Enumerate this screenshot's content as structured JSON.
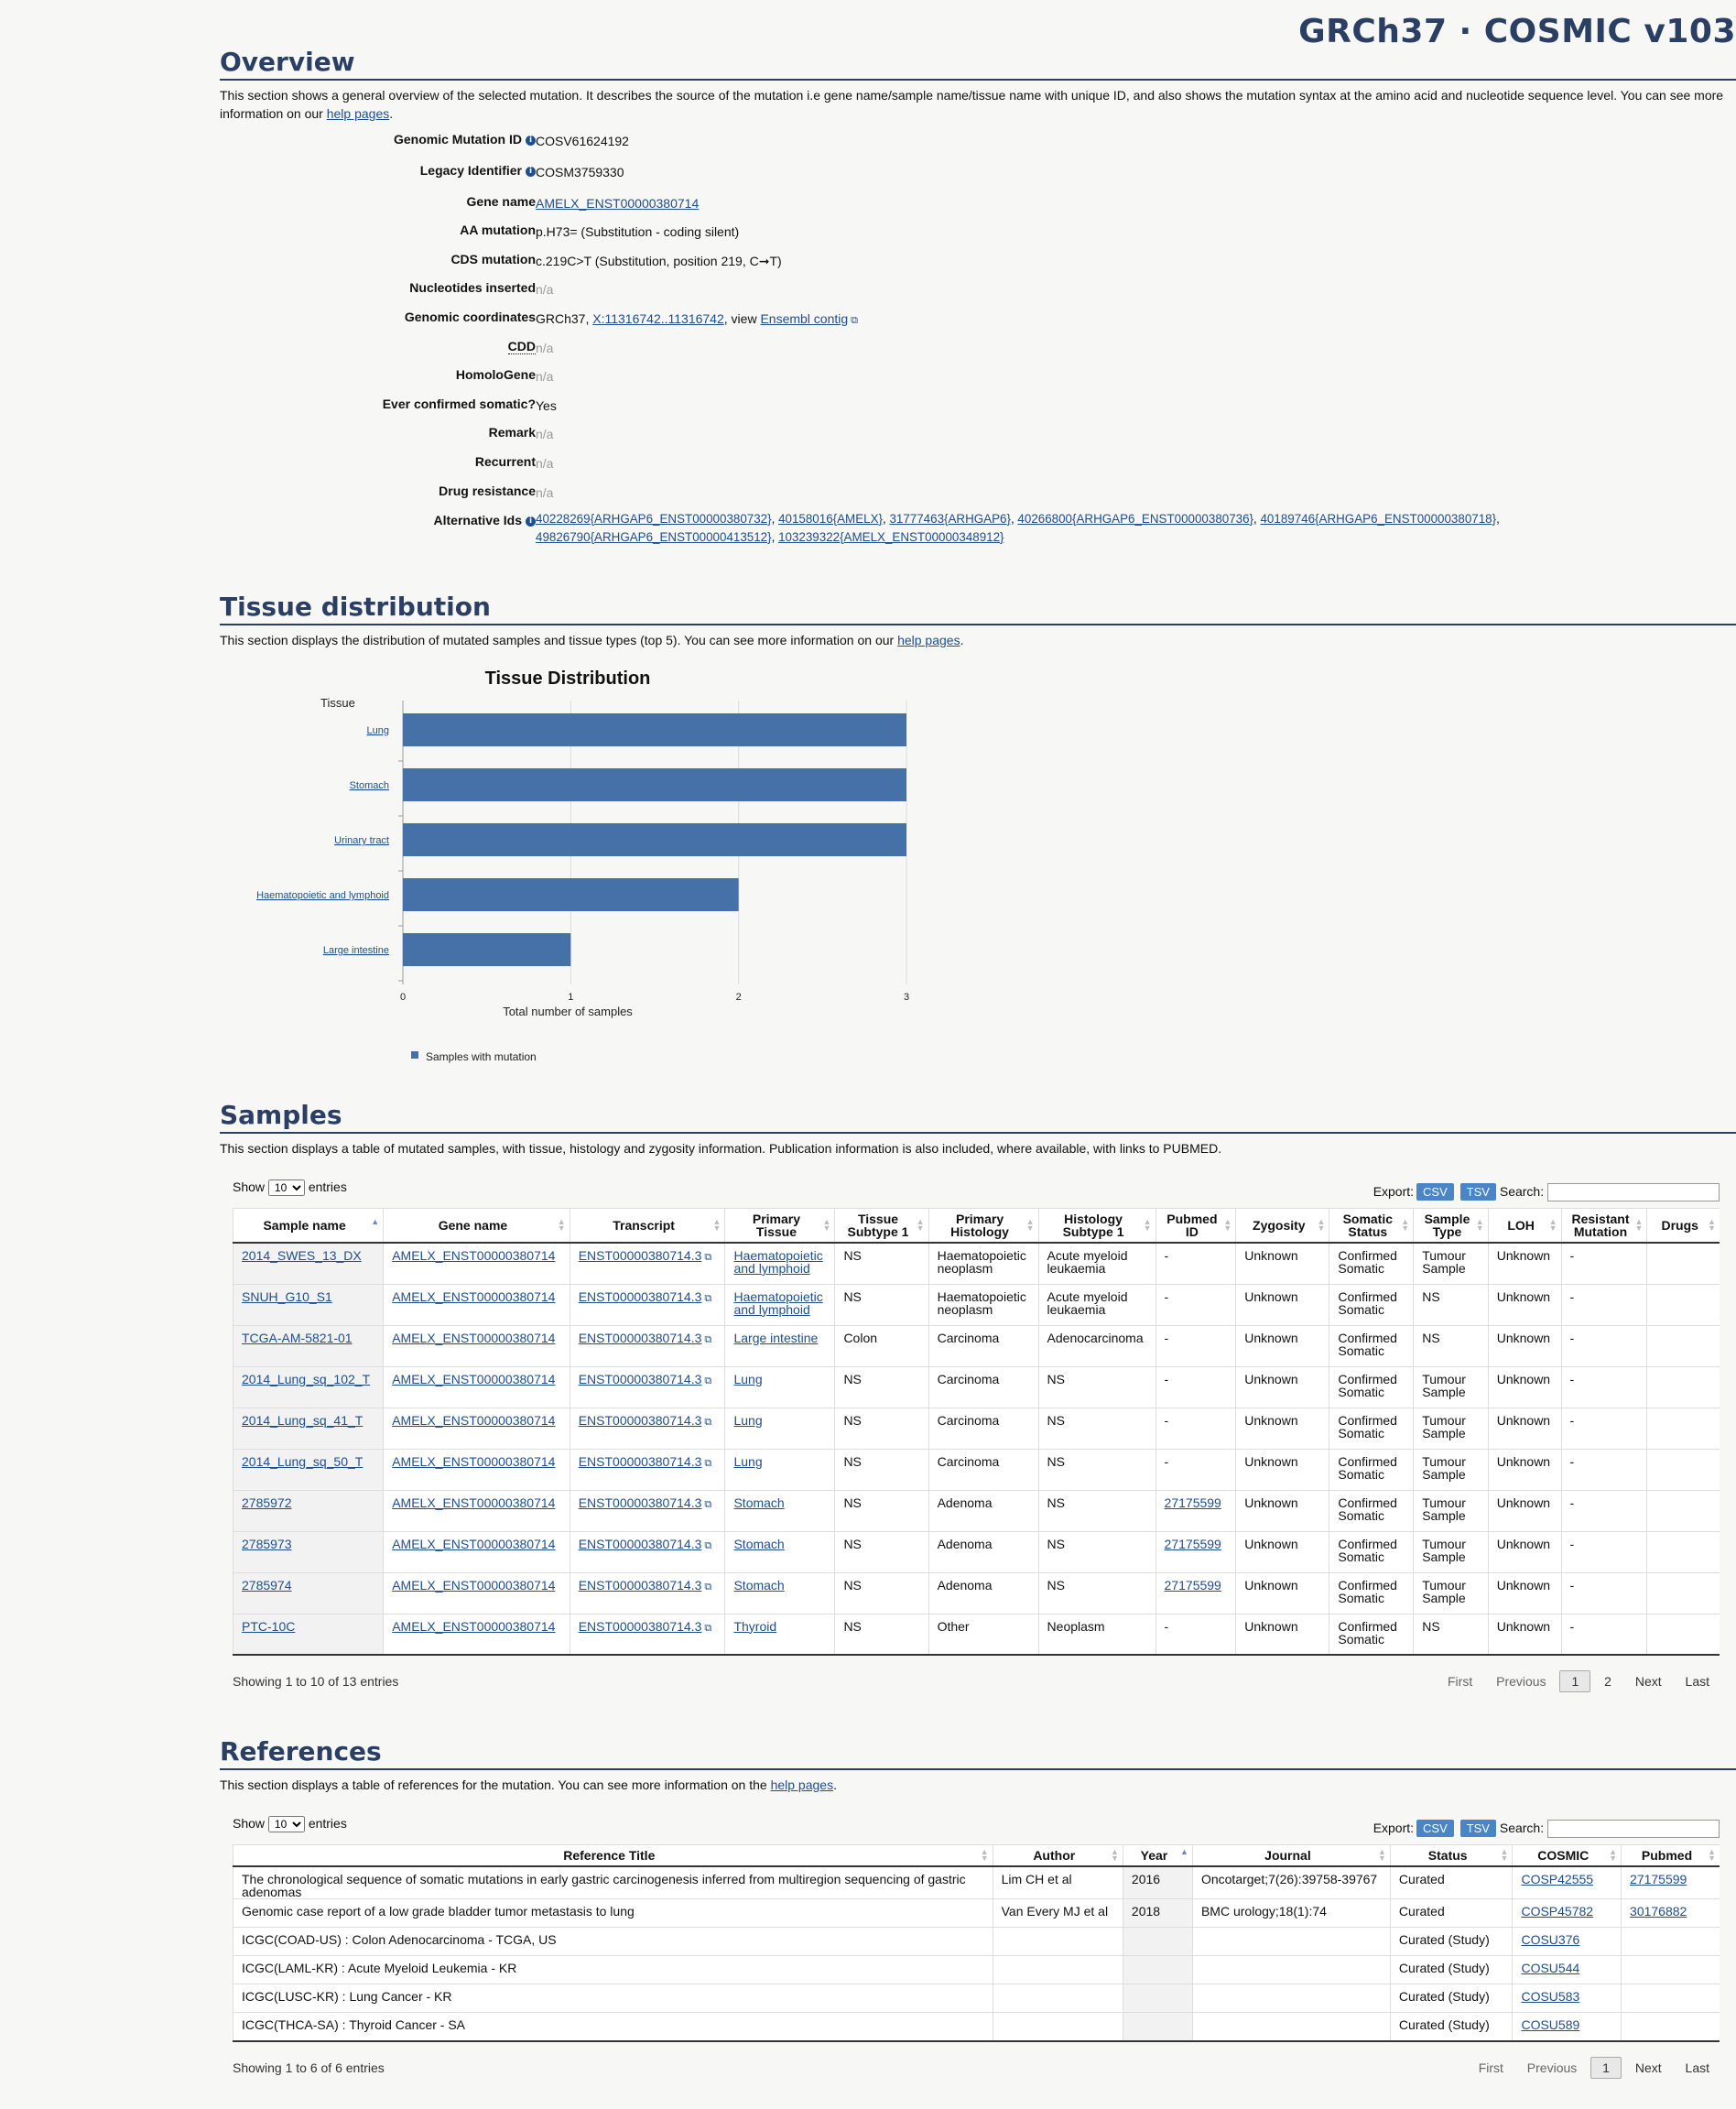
{
  "header": {
    "title": "GRCh37 · COSMIC v103"
  },
  "overview": {
    "heading": "Overview",
    "description": "This section shows a general overview of the selected mutation. It describes the source of the mutation i.e gene name/sample name/tissue name with unique ID, and also shows the mutation syntax at the amino acid and nucleotide sequence level. You can see more information on our ",
    "help_link": "help pages",
    "description_end": ".",
    "fields": {
      "genomic_mutation_id": {
        "label": "Genomic Mutation ID",
        "value": "COSV61624192"
      },
      "legacy_identifier": {
        "label": "Legacy Identifier",
        "value": "COSM3759330"
      },
      "gene_name": {
        "label": "Gene name",
        "value": "AMELX_ENST00000380714"
      },
      "aa_mutation": {
        "label": "AA mutation",
        "value": "p.H73= (Substitution - coding silent)"
      },
      "cds_mutation": {
        "label": "CDS mutation",
        "value": "c.219C>T (Substitution, position 219, C➞T)"
      },
      "nucleotides_inserted": {
        "label": "Nucleotides inserted",
        "value": "n/a"
      },
      "genomic_coordinates": {
        "label": "Genomic coordinates",
        "prefix": "GRCh37, ",
        "link": "X:11316742..11316742",
        "middle": ", view ",
        "link2": "Ensembl contig"
      },
      "cdd": {
        "label": "CDD",
        "value": "n/a"
      },
      "homologene": {
        "label": "HomoloGene",
        "value": "n/a"
      },
      "ever_confirmed": {
        "label": "Ever confirmed somatic?",
        "value": "Yes"
      },
      "remark": {
        "label": "Remark",
        "value": "n/a"
      },
      "recurrent": {
        "label": "Recurrent",
        "value": "n/a"
      },
      "drug_resistance": {
        "label": "Drug resistance",
        "value": "n/a"
      },
      "alternative_ids": {
        "label": "Alternative Ids",
        "links": [
          "40228269{ARHGAP6_ENST00000380732}",
          "40158016{AMELX}",
          "31777463{ARHGAP6}",
          "40266800{ARHGAP6_ENST00000380736}",
          "40189746{ARHGAP6_ENST00000380718}",
          "49826790{ARHGAP6_ENST00000413512}",
          "103239322{AMELX_ENST00000348912}"
        ]
      }
    }
  },
  "tissue": {
    "heading": "Tissue distribution",
    "description": "This section displays the distribution of mutated samples and tissue types (top 5). You can see more information on our ",
    "help_link": "help pages",
    "description_end": "."
  },
  "chart_data": {
    "type": "bar",
    "orientation": "horizontal",
    "title": "Tissue Distribution",
    "ylabel": "Tissue",
    "xlabel": "Total number of samples",
    "categories": [
      "Lung",
      "Stomach",
      "Urinary tract",
      "Haematopoietic and lymphoid",
      "Large intestine"
    ],
    "series": [
      {
        "name": "Samples with mutation",
        "values": [
          3,
          3,
          3,
          2,
          1
        ],
        "color": "#4571a8"
      }
    ],
    "xlim": [
      0,
      3
    ],
    "xticks": [
      "0",
      "1",
      "2",
      "3"
    ],
    "legend": "bottom-left",
    "grid": true
  },
  "samples": {
    "heading": "Samples",
    "description": "This section displays a table of mutated samples, with tissue, histology and zygosity information. Publication information is also included, where available, with links to PUBMED.",
    "controls": {
      "show": "Show",
      "entries_value": "10",
      "entries": "entries",
      "export": "Export:",
      "csv": "CSV",
      "tsv": "TSV",
      "search": "Search:"
    },
    "columns": [
      "Sample name",
      "Gene name",
      "Transcript",
      "Primary Tissue",
      "Tissue Subtype 1",
      "Primary Histology",
      "Histology Subtype 1",
      "Pubmed ID",
      "Zygosity",
      "Somatic Status",
      "Sample Type",
      "LOH",
      "Resistant Mutation",
      "Drugs"
    ],
    "rows": [
      [
        "2014_SWES_13_DX",
        "AMELX_ENST00000380714",
        "ENST00000380714.3",
        "Haematopoietic and lymphoid",
        "NS",
        "Haematopoietic neoplasm",
        "Acute myeloid leukaemia",
        "-",
        "Unknown",
        "Confirmed Somatic",
        "Tumour Sample",
        "Unknown",
        "-",
        ""
      ],
      [
        "SNUH_G10_S1",
        "AMELX_ENST00000380714",
        "ENST00000380714.3",
        "Haematopoietic and lymphoid",
        "NS",
        "Haematopoietic neoplasm",
        "Acute myeloid leukaemia",
        "-",
        "Unknown",
        "Confirmed Somatic",
        "NS",
        "Unknown",
        "-",
        ""
      ],
      [
        "TCGA-AM-5821-01",
        "AMELX_ENST00000380714",
        "ENST00000380714.3",
        "Large intestine",
        "Colon",
        "Carcinoma",
        "Adenocarcinoma",
        "-",
        "Unknown",
        "Confirmed Somatic",
        "NS",
        "Unknown",
        "-",
        ""
      ],
      [
        "2014_Lung_sq_102_T",
        "AMELX_ENST00000380714",
        "ENST00000380714.3",
        "Lung",
        "NS",
        "Carcinoma",
        "NS",
        "-",
        "Unknown",
        "Confirmed Somatic",
        "Tumour Sample",
        "Unknown",
        "-",
        ""
      ],
      [
        "2014_Lung_sq_41_T",
        "AMELX_ENST00000380714",
        "ENST00000380714.3",
        "Lung",
        "NS",
        "Carcinoma",
        "NS",
        "-",
        "Unknown",
        "Confirmed Somatic",
        "Tumour Sample",
        "Unknown",
        "-",
        ""
      ],
      [
        "2014_Lung_sq_50_T",
        "AMELX_ENST00000380714",
        "ENST00000380714.3",
        "Lung",
        "NS",
        "Carcinoma",
        "NS",
        "-",
        "Unknown",
        "Confirmed Somatic",
        "Tumour Sample",
        "Unknown",
        "-",
        ""
      ],
      [
        "2785972",
        "AMELX_ENST00000380714",
        "ENST00000380714.3",
        "Stomach",
        "NS",
        "Adenoma",
        "NS",
        "27175599",
        "Unknown",
        "Confirmed Somatic",
        "Tumour Sample",
        "Unknown",
        "-",
        ""
      ],
      [
        "2785973",
        "AMELX_ENST00000380714",
        "ENST00000380714.3",
        "Stomach",
        "NS",
        "Adenoma",
        "NS",
        "27175599",
        "Unknown",
        "Confirmed Somatic",
        "Tumour Sample",
        "Unknown",
        "-",
        ""
      ],
      [
        "2785974",
        "AMELX_ENST00000380714",
        "ENST00000380714.3",
        "Stomach",
        "NS",
        "Adenoma",
        "NS",
        "27175599",
        "Unknown",
        "Confirmed Somatic",
        "Tumour Sample",
        "Unknown",
        "-",
        ""
      ],
      [
        "PTC-10C",
        "AMELX_ENST00000380714",
        "ENST00000380714.3",
        "Thyroid",
        "NS",
        "Other",
        "Neoplasm",
        "-",
        "Unknown",
        "Confirmed Somatic",
        "NS",
        "Unknown",
        "-",
        ""
      ]
    ],
    "info": "Showing 1 to 10 of 13 entries",
    "pager": {
      "first": "First",
      "previous": "Previous",
      "current": "1",
      "page2": "2",
      "next": "Next",
      "last": "Last"
    }
  },
  "references": {
    "heading": "References",
    "description": "This section displays a table of references for the mutation. You can see more information on the ",
    "help_link": "help pages",
    "description_end": ".",
    "controls": {
      "show": "Show",
      "entries_value": "10",
      "entries": "entries",
      "export": "Export:",
      "csv": "CSV",
      "tsv": "TSV",
      "search": "Search:"
    },
    "columns": [
      "Reference Title",
      "Author",
      "Year",
      "Journal",
      "Status",
      "COSMIC",
      "Pubmed"
    ],
    "rows": [
      [
        "The chronological sequence of somatic mutations in early gastric carcinogenesis inferred from multiregion sequencing of gastric adenomas",
        "Lim CH et al",
        "2016",
        "Oncotarget;7(26):39758-39767",
        "Curated",
        "COSP42555",
        "27175599"
      ],
      [
        "Genomic case report of a low grade bladder tumor metastasis to lung",
        "Van Every MJ et al",
        "2018",
        "BMC urology;18(1):74",
        "Curated",
        "COSP45782",
        "30176882"
      ],
      [
        "ICGC(COAD-US) : Colon Adenocarcinoma - TCGA, US",
        "",
        "",
        "",
        "Curated (Study)",
        "COSU376",
        ""
      ],
      [
        "ICGC(LAML-KR) : Acute Myeloid Leukemia - KR",
        "",
        "",
        "",
        "Curated (Study)",
        "COSU544",
        ""
      ],
      [
        "ICGC(LUSC-KR) : Lung Cancer - KR",
        "",
        "",
        "",
        "Curated (Study)",
        "COSU583",
        ""
      ],
      [
        "ICGC(THCA-SA) : Thyroid Cancer - SA",
        "",
        "",
        "",
        "Curated (Study)",
        "COSU589",
        ""
      ]
    ],
    "info": "Showing 1 to 6 of 6 entries",
    "pager": {
      "first": "First",
      "previous": "Previous",
      "current": "1",
      "next": "Next",
      "last": "Last"
    }
  }
}
